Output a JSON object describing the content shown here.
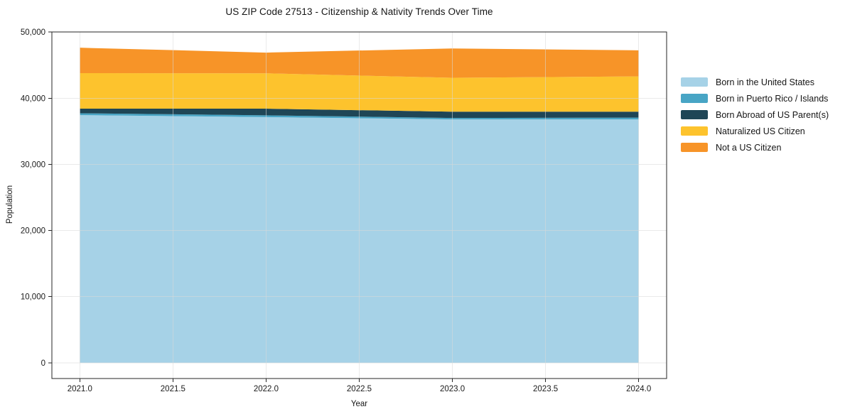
{
  "chart_data": {
    "type": "area",
    "stacked": true,
    "title": "US ZIP Code 27513 - Citizenship & Nativity Trends Over Time",
    "xlabel": "Year",
    "ylabel": "Population",
    "x": [
      2021,
      2022,
      2023,
      2024
    ],
    "series": [
      {
        "name": "Born in the United States",
        "color": "#a6d2e7",
        "values": [
          37450,
          37150,
          36800,
          36800
        ]
      },
      {
        "name": "Born in Puerto Rico / Islands",
        "color": "#48a5c5",
        "values": [
          280,
          270,
          220,
          270
        ]
      },
      {
        "name": "Born Abroad of US Parent(s)",
        "color": "#1f4656",
        "values": [
          700,
          1000,
          950,
          900
        ]
      },
      {
        "name": "Naturalized US Citizen",
        "color": "#fdc32d",
        "values": [
          5370,
          5350,
          5120,
          5330
        ]
      },
      {
        "name": "Not a US Citizen",
        "color": "#f79428",
        "values": [
          3840,
          3130,
          4440,
          3950
        ]
      }
    ],
    "stack_totals": [
      47640,
      46900,
      47530,
      47250
    ],
    "xticks": [
      2021.0,
      2021.5,
      2022.0,
      2022.5,
      2023.0,
      2023.5,
      2024.0
    ],
    "yticks": [
      0,
      10000,
      20000,
      30000,
      40000,
      50000
    ],
    "xlim": [
      2020.85,
      2024.15
    ],
    "ylim": [
      -2382,
      50022
    ],
    "grid": true,
    "legend_position": "right-outside",
    "colors": {
      "grid_line": "#d9d9d9",
      "spine": "#262626",
      "text": "#151515",
      "background": "#ffffff"
    }
  }
}
